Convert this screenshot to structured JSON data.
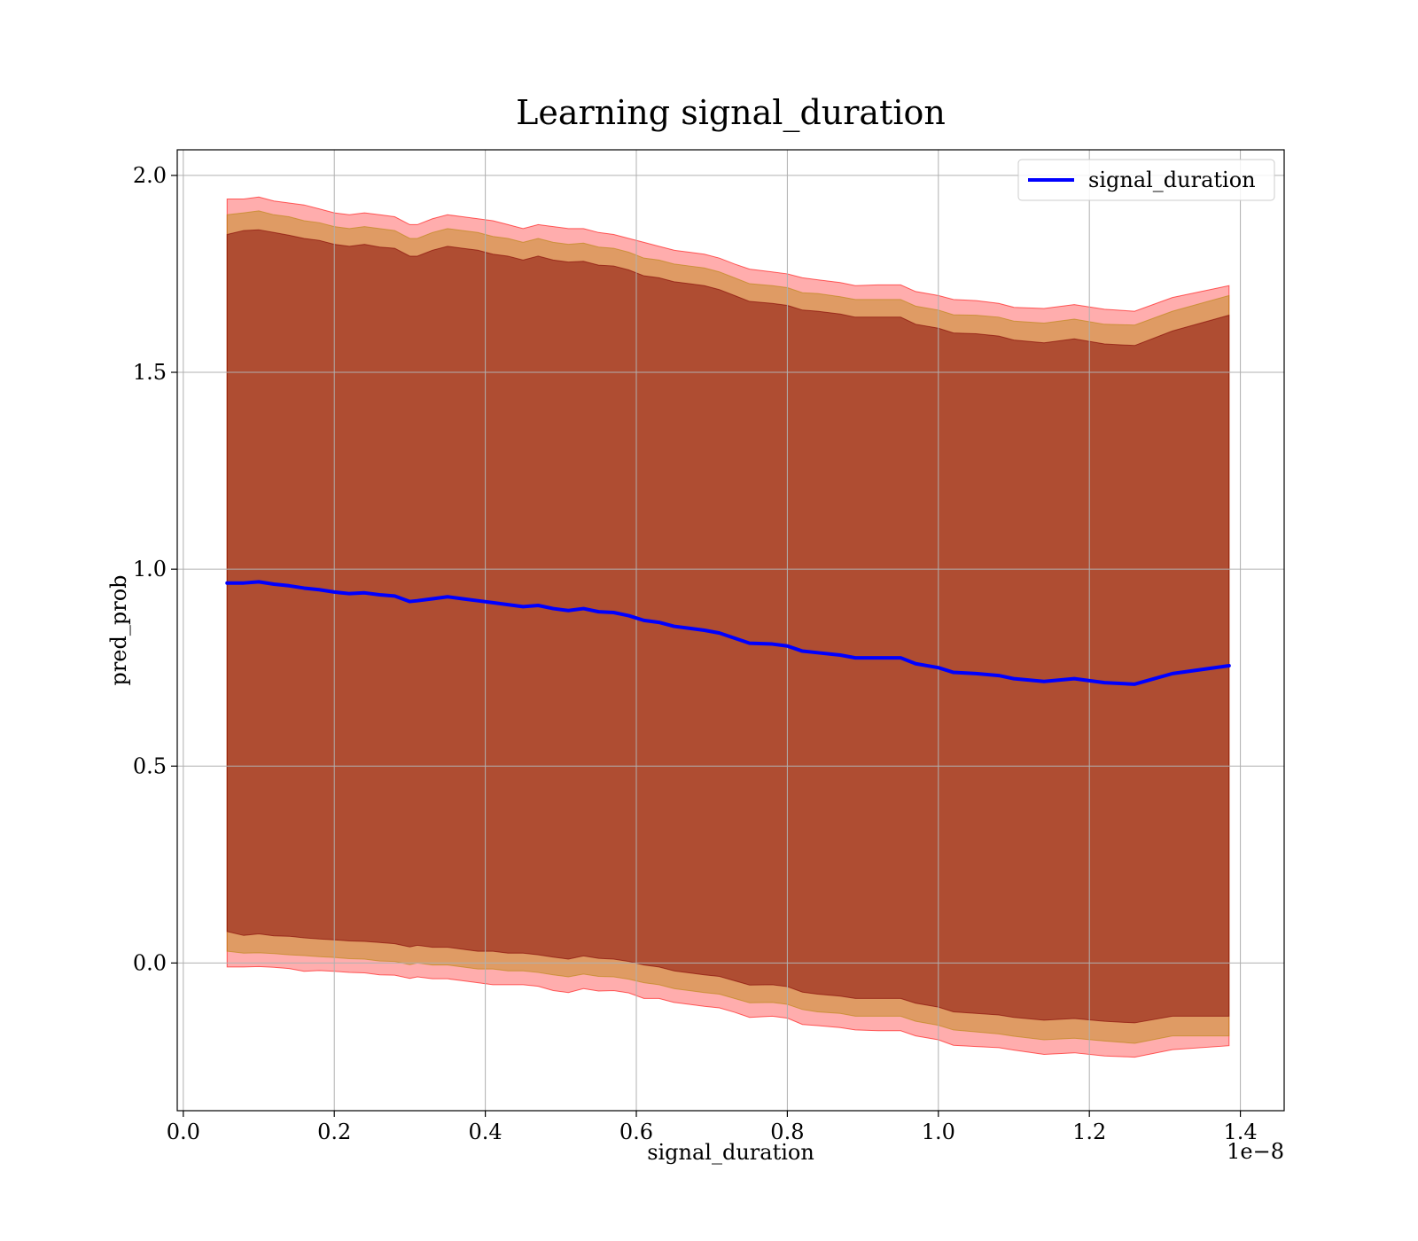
{
  "chart_data": {
    "type": "line",
    "title": "Learning signal_duration",
    "xlabel": "signal_duration",
    "ylabel": "pred_prob",
    "x_offset_label": "1e−8",
    "xlim": [
      -0.008,
      1.458
    ],
    "ylim": [
      -0.375,
      2.065
    ],
    "x_ticks": [
      0.0,
      0.2,
      0.4,
      0.6,
      0.8,
      1.0,
      1.2,
      1.4
    ],
    "x_tick_labels": [
      "0.0",
      "0.2",
      "0.4",
      "0.6",
      "0.8",
      "1.0",
      "1.2",
      "1.4"
    ],
    "y_ticks": [
      0.0,
      0.5,
      1.0,
      1.5,
      2.0
    ],
    "y_tick_labels": [
      "0.0",
      "0.5",
      "1.0",
      "1.5",
      "2.0"
    ],
    "grid": true,
    "legend_position": "top-right",
    "colors": {
      "line": "#0000ff",
      "band_inner": "#800000",
      "band_middle": "#b8860b",
      "band_outer": "#ff0000"
    },
    "x": [
      0.058,
      0.08,
      0.1,
      0.12,
      0.14,
      0.16,
      0.18,
      0.2,
      0.22,
      0.24,
      0.26,
      0.28,
      0.3,
      0.31,
      0.33,
      0.35,
      0.37,
      0.39,
      0.41,
      0.43,
      0.45,
      0.47,
      0.49,
      0.51,
      0.53,
      0.55,
      0.57,
      0.59,
      0.61,
      0.63,
      0.65,
      0.67,
      0.69,
      0.71,
      0.73,
      0.75,
      0.78,
      0.8,
      0.82,
      0.84,
      0.87,
      0.89,
      0.92,
      0.95,
      0.97,
      1.0,
      1.02,
      1.05,
      1.08,
      1.1,
      1.14,
      1.18,
      1.22,
      1.26,
      1.31,
      1.385
    ],
    "series": [
      {
        "name": "signal_duration",
        "values": [
          0.965,
          0.965,
          0.968,
          0.962,
          0.958,
          0.952,
          0.948,
          0.942,
          0.938,
          0.94,
          0.935,
          0.932,
          0.918,
          0.92,
          0.925,
          0.93,
          0.925,
          0.92,
          0.915,
          0.91,
          0.905,
          0.908,
          0.9,
          0.895,
          0.9,
          0.892,
          0.89,
          0.882,
          0.87,
          0.865,
          0.855,
          0.85,
          0.845,
          0.838,
          0.825,
          0.812,
          0.81,
          0.805,
          0.792,
          0.788,
          0.782,
          0.775,
          0.775,
          0.775,
          0.76,
          0.75,
          0.738,
          0.735,
          0.73,
          0.722,
          0.715,
          0.722,
          0.712,
          0.708,
          0.735,
          0.755
        ]
      }
    ],
    "bands": [
      {
        "upper": [
          1.94,
          1.94,
          1.945,
          1.935,
          1.93,
          1.925,
          1.915,
          1.905,
          1.9,
          1.905,
          1.9,
          1.895,
          1.875,
          1.875,
          1.89,
          1.9,
          1.895,
          1.89,
          1.885,
          1.875,
          1.865,
          1.875,
          1.87,
          1.865,
          1.865,
          1.855,
          1.85,
          1.84,
          1.83,
          1.82,
          1.81,
          1.805,
          1.8,
          1.79,
          1.775,
          1.762,
          1.755,
          1.75,
          1.74,
          1.735,
          1.728,
          1.72,
          1.722,
          1.722,
          1.705,
          1.695,
          1.685,
          1.682,
          1.675,
          1.665,
          1.662,
          1.672,
          1.66,
          1.655,
          1.69,
          1.72
        ],
        "lower": [
          -0.01,
          -0.01,
          -0.009,
          -0.011,
          -0.014,
          -0.021,
          -0.019,
          -0.021,
          -0.024,
          -0.025,
          -0.03,
          -0.031,
          -0.039,
          -0.035,
          -0.04,
          -0.04,
          -0.045,
          -0.05,
          -0.055,
          -0.055,
          -0.055,
          -0.059,
          -0.07,
          -0.075,
          -0.065,
          -0.071,
          -0.07,
          -0.076,
          -0.09,
          -0.09,
          -0.1,
          -0.105,
          -0.11,
          -0.114,
          -0.125,
          -0.138,
          -0.135,
          -0.14,
          -0.156,
          -0.159,
          -0.164,
          -0.17,
          -0.172,
          -0.172,
          -0.185,
          -0.195,
          -0.209,
          -0.212,
          -0.215,
          -0.221,
          -0.232,
          -0.228,
          -0.236,
          -0.239,
          -0.22,
          -0.21
        ]
      },
      {
        "upper": [
          1.9,
          1.905,
          1.91,
          1.9,
          1.895,
          1.885,
          1.88,
          1.87,
          1.865,
          1.87,
          1.865,
          1.86,
          1.84,
          1.84,
          1.855,
          1.865,
          1.86,
          1.855,
          1.845,
          1.84,
          1.83,
          1.84,
          1.83,
          1.825,
          1.828,
          1.818,
          1.815,
          1.805,
          1.79,
          1.785,
          1.775,
          1.77,
          1.765,
          1.755,
          1.74,
          1.725,
          1.72,
          1.715,
          1.702,
          1.7,
          1.692,
          1.685,
          1.685,
          1.685,
          1.668,
          1.658,
          1.646,
          1.645,
          1.64,
          1.63,
          1.625,
          1.635,
          1.622,
          1.62,
          1.655,
          1.695
        ],
        "lower": [
          0.03,
          0.025,
          0.026,
          0.024,
          0.021,
          0.019,
          0.016,
          0.014,
          0.011,
          0.01,
          0.005,
          0.004,
          -0.004,
          0.0,
          -0.005,
          -0.005,
          -0.01,
          -0.015,
          -0.015,
          -0.02,
          -0.02,
          -0.024,
          -0.03,
          -0.035,
          -0.028,
          -0.034,
          -0.035,
          -0.041,
          -0.05,
          -0.055,
          -0.065,
          -0.07,
          -0.075,
          -0.079,
          -0.09,
          -0.101,
          -0.1,
          -0.105,
          -0.118,
          -0.124,
          -0.128,
          -0.135,
          -0.135,
          -0.135,
          -0.148,
          -0.158,
          -0.17,
          -0.175,
          -0.18,
          -0.186,
          -0.195,
          -0.191,
          -0.198,
          -0.204,
          -0.185,
          -0.185
        ]
      },
      {
        "upper": [
          1.85,
          1.86,
          1.862,
          1.855,
          1.848,
          1.84,
          1.835,
          1.825,
          1.82,
          1.825,
          1.818,
          1.815,
          1.795,
          1.795,
          1.81,
          1.82,
          1.815,
          1.81,
          1.8,
          1.795,
          1.785,
          1.795,
          1.785,
          1.78,
          1.782,
          1.772,
          1.77,
          1.76,
          1.745,
          1.74,
          1.73,
          1.725,
          1.72,
          1.71,
          1.695,
          1.68,
          1.675,
          1.67,
          1.658,
          1.655,
          1.648,
          1.64,
          1.64,
          1.64,
          1.622,
          1.612,
          1.6,
          1.598,
          1.592,
          1.582,
          1.575,
          1.585,
          1.572,
          1.568,
          1.605,
          1.645
        ],
        "lower": [
          0.08,
          0.07,
          0.074,
          0.069,
          0.068,
          0.064,
          0.061,
          0.059,
          0.056,
          0.055,
          0.052,
          0.049,
          0.041,
          0.045,
          0.04,
          0.04,
          0.035,
          0.03,
          0.03,
          0.025,
          0.025,
          0.021,
          0.015,
          0.01,
          0.018,
          0.012,
          0.01,
          0.004,
          -0.005,
          -0.01,
          -0.02,
          -0.025,
          -0.03,
          -0.034,
          -0.045,
          -0.056,
          -0.055,
          -0.06,
          -0.074,
          -0.079,
          -0.084,
          -0.09,
          -0.09,
          -0.09,
          -0.102,
          -0.112,
          -0.124,
          -0.128,
          -0.132,
          -0.138,
          -0.145,
          -0.141,
          -0.148,
          -0.152,
          -0.135,
          -0.135
        ]
      }
    ]
  }
}
